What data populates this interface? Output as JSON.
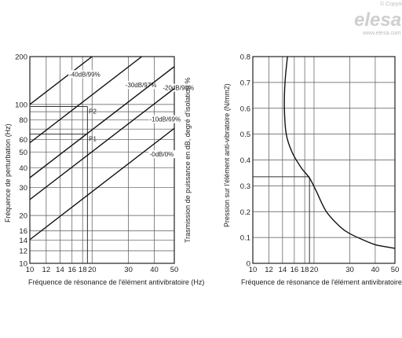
{
  "watermark": {
    "copyright": "© Copyright",
    "brand": "elesa",
    "url": "www.elesa.com"
  },
  "chart_data": [
    {
      "type": "line",
      "x_scale": "log",
      "y_scale": "log",
      "xlabel": "Fréquence de résonance de l'élément antivibratoire (Hz)",
      "ylabel": "Fréquence de perturbation (Hz)",
      "xlim": [
        10,
        50
      ],
      "ylim": [
        10,
        200
      ],
      "x_ticks": [
        10,
        12,
        14,
        16,
        18,
        20,
        30,
        40,
        50
      ],
      "y_ticks": [
        10,
        12,
        14,
        16,
        20,
        30,
        40,
        50,
        60,
        80,
        100,
        200
      ],
      "x_grid": [
        10,
        12,
        14,
        16,
        18,
        20,
        30,
        40,
        50
      ],
      "y_grid": [
        10,
        12,
        14,
        16,
        20,
        30,
        40,
        50,
        60,
        70,
        80,
        90,
        100,
        200
      ],
      "series": [
        {
          "name": "-40dB/99%",
          "points": [
            [
              10,
              100
            ],
            [
              20,
              200
            ]
          ],
          "label_at": [
            15.5,
            150
          ]
        },
        {
          "name": "-30dB/97%",
          "points": [
            [
              10,
              57.4
            ],
            [
              34.8,
              200
            ]
          ],
          "label_at": [
            29,
            128
          ]
        },
        {
          "name": "-20dB/90%",
          "points": [
            [
              10,
              34.6
            ],
            [
              50,
              173
            ]
          ],
          "label_at": [
            44,
            123
          ]
        },
        {
          "name": "-10dB/69%",
          "points": [
            [
              10,
              25.2
            ],
            [
              50,
              126
            ]
          ],
          "label_at": [
            38,
            78
          ]
        },
        {
          "name": "-0dB/0%",
          "points": [
            [
              10,
              14.1
            ],
            [
              50,
              70.7
            ]
          ],
          "label_at": [
            38,
            47
          ]
        }
      ],
      "annotations": [
        {
          "text": "P2",
          "x": 19.3,
          "y": 97
        },
        {
          "text": "P1",
          "x": 19.3,
          "y": 65
        }
      ],
      "reference_lines": {
        "vertical_x": 19,
        "horizontal": [
          {
            "y": 97,
            "x_to": 19
          },
          {
            "y": 65,
            "x_to": 19
          }
        ]
      }
    },
    {
      "type": "line",
      "x_scale": "log",
      "y_scale": "linear",
      "xlabel": "Fréquence de résonance de l'élément antivibratoire (Hz)",
      "ylabel": "Pression sur l'élément anti-vibratoire (N/mm2)",
      "y2label": "Trasmission de puissance en dB, degré d'isolation %",
      "xlim": [
        10,
        50
      ],
      "ylim": [
        0,
        0.8
      ],
      "x_ticks": [
        10,
        12,
        14,
        16,
        18,
        20,
        30,
        40,
        50
      ],
      "y_ticks": [
        0,
        0.1,
        0.2,
        0.3,
        0.4,
        0.5,
        0.6,
        0.7,
        0.8
      ],
      "x_grid": [
        10,
        12,
        14,
        16,
        18,
        20,
        30,
        40,
        50
      ],
      "y_grid": [
        0,
        0.1,
        0.2,
        0.3,
        0.4,
        0.5,
        0.6,
        0.7,
        0.8
      ],
      "series": [
        {
          "name": "",
          "points": [
            [
              14.8,
              0.8
            ],
            [
              14.4,
              0.7
            ],
            [
              14.3,
              0.6
            ],
            [
              14.6,
              0.5
            ],
            [
              15.6,
              0.43
            ],
            [
              17.3,
              0.37
            ],
            [
              19.0,
              0.33
            ],
            [
              20.5,
              0.28
            ],
            [
              23,
              0.2
            ],
            [
              27,
              0.14
            ],
            [
              30,
              0.115
            ],
            [
              35,
              0.09
            ],
            [
              40,
              0.072
            ],
            [
              45,
              0.064
            ],
            [
              50,
              0.058
            ]
          ]
        }
      ],
      "reference_lines": {
        "vertical_x": 19,
        "horizontal": [
          {
            "y": 0.335,
            "x_to": 19
          }
        ]
      }
    }
  ]
}
